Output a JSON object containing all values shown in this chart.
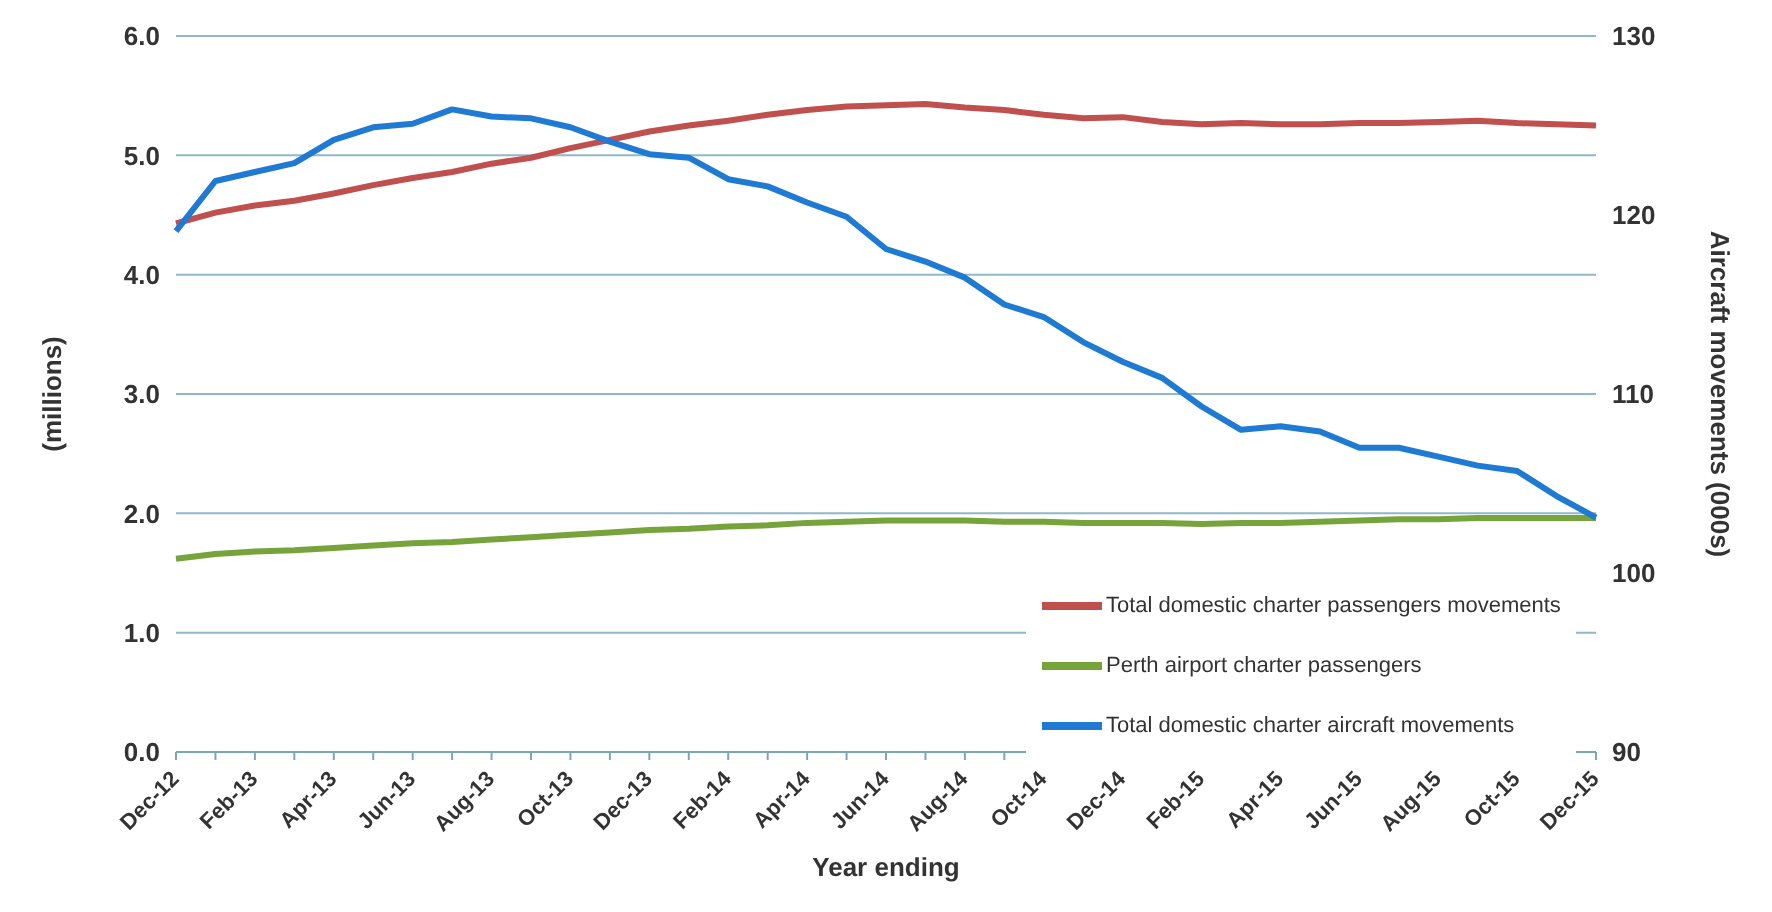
{
  "chart_data": {
    "type": "line",
    "xlabel": "Year ending",
    "ylabel": "(millions)",
    "y2label": "Aircraft movements (000s)",
    "categories": [
      "Dec-12",
      null,
      "Feb-13",
      null,
      "Apr-13",
      null,
      "Jun-13",
      null,
      "Aug-13",
      null,
      "Oct-13",
      null,
      "Dec-13",
      null,
      "Feb-14",
      null,
      "Apr-14",
      null,
      "Jun-14",
      null,
      "Aug-14",
      null,
      "Oct-14",
      null,
      "Dec-14",
      null,
      "Feb-15",
      null,
      "Apr-15",
      null,
      "Jun-15",
      null,
      "Aug-15",
      null,
      "Oct-15",
      null,
      "Dec-15"
    ],
    "series": [
      {
        "name": "Total domestic charter passengers movements",
        "color": "#c0504d",
        "values": [
          4.43,
          4.52,
          4.58,
          4.62,
          4.68,
          4.75,
          4.81,
          4.86,
          4.93,
          4.98,
          5.06,
          5.13,
          5.2,
          5.25,
          5.29,
          5.34,
          5.38,
          5.41,
          5.42,
          5.43,
          5.4,
          5.38,
          5.34,
          5.31,
          5.32,
          5.28,
          5.26,
          5.27,
          5.26,
          5.26,
          5.27,
          5.27,
          5.28,
          5.29,
          5.27,
          5.26,
          5.25
        ]
      },
      {
        "name": "Perth airport charter passengers",
        "color": "#77a33b",
        "values": [
          1.62,
          1.66,
          1.68,
          1.69,
          1.71,
          1.73,
          1.75,
          1.76,
          1.78,
          1.8,
          1.82,
          1.84,
          1.86,
          1.87,
          1.89,
          1.9,
          1.92,
          1.93,
          1.94,
          1.94,
          1.94,
          1.93,
          1.93,
          1.92,
          1.92,
          1.92,
          1.91,
          1.92,
          1.92,
          1.93,
          1.94,
          1.95,
          1.95,
          1.96,
          1.96,
          1.96,
          1.96
        ]
      },
      {
        "name": "Total domestic charter aircraft movements",
        "color": "#1f7ad4",
        "axis": "y2",
        "values": [
          119.1,
          121.9,
          122.4,
          122.9,
          124.2,
          124.9,
          125.1,
          125.9,
          125.5,
          125.4,
          124.9,
          124.1,
          123.4,
          123.2,
          122.0,
          121.6,
          120.7,
          119.9,
          118.1,
          117.4,
          116.5,
          115.0,
          114.3,
          112.9,
          111.8,
          110.9,
          109.3,
          108.0,
          108.2,
          107.9,
          107.0,
          107.0,
          106.5,
          106.0,
          105.7,
          104.3,
          103.1
        ]
      }
    ],
    "ylim": [
      0,
      6
    ],
    "yticks": [
      {
        "value": 0,
        "label": "0.0"
      },
      {
        "value": 1,
        "label": "1.0"
      },
      {
        "value": 2,
        "label": "2.0"
      },
      {
        "value": 3,
        "label": "3.0"
      },
      {
        "value": 4,
        "label": "4.0"
      },
      {
        "value": 5,
        "label": "5.0"
      },
      {
        "value": 6,
        "label": "6.0"
      }
    ],
    "y2lim": [
      90,
      130
    ],
    "y2ticks": [
      90,
      100,
      110,
      120,
      130
    ],
    "grid": "y",
    "legend": "bottom right",
    "marker": "none",
    "line_style": "solid"
  }
}
